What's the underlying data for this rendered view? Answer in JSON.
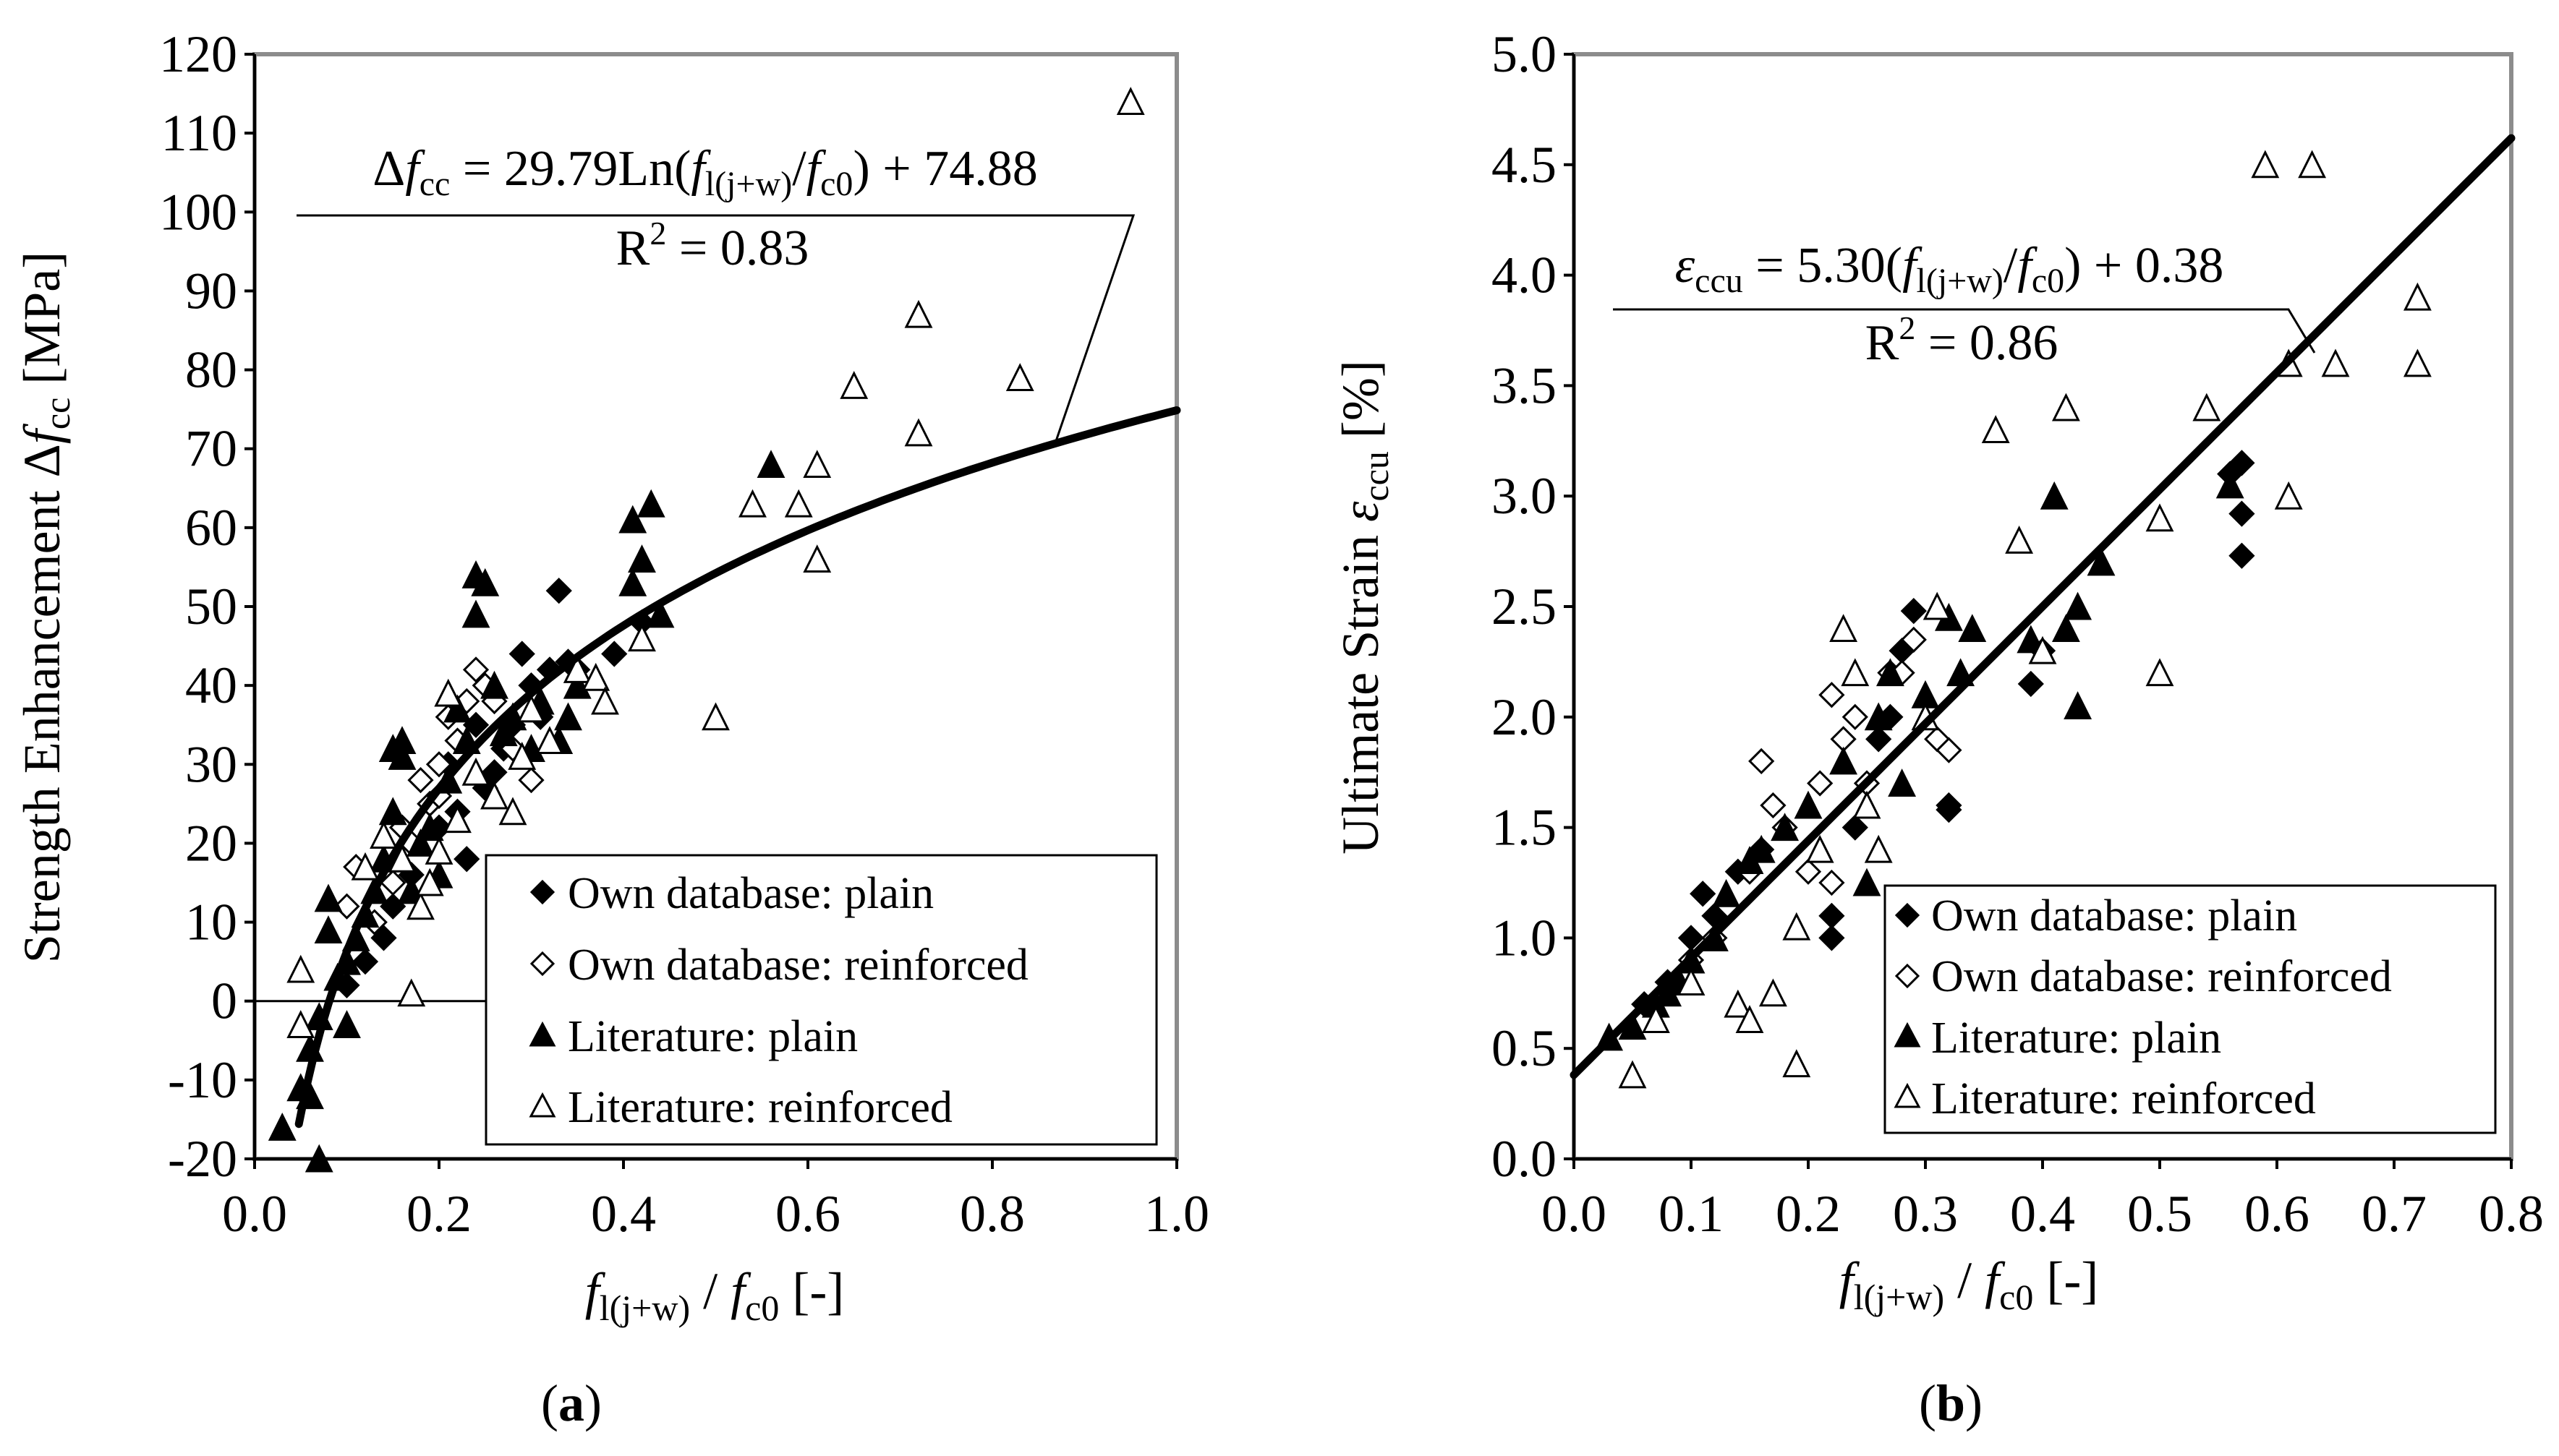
{
  "chart_data": [
    {
      "id": "a",
      "type": "scatter",
      "caption": {
        "open": "(",
        "letter": "a",
        "close": ")"
      },
      "xlim": [
        0,
        1.0
      ],
      "ylim": [
        -20,
        120
      ],
      "x_ticks": [
        "0.0",
        "0.2",
        "0.4",
        "0.6",
        "0.8",
        "1.0"
      ],
      "x_tick_values": [
        0,
        0.2,
        0.4,
        0.6,
        0.8,
        1.0
      ],
      "y_ticks": [
        "-20",
        "-10",
        "0",
        "10",
        "20",
        "30",
        "40",
        "50",
        "60",
        "70",
        "80",
        "90",
        "100",
        "110",
        "120"
      ],
      "y_tick_values": [
        -20,
        -10,
        0,
        10,
        20,
        30,
        40,
        50,
        60,
        70,
        80,
        90,
        100,
        110,
        120
      ],
      "ylabel": {
        "main": "Strength Enhancement Δ",
        "f": "f",
        "sub": "cc",
        "unit": " [MPa]"
      },
      "xlabel": {
        "f1": "f",
        "sub1": "l(j+w)",
        "slash": " / ",
        "f2": "f",
        "sub2": "c0",
        "unit": "  [-]"
      },
      "equation": {
        "lhs_delta": "Δ",
        "lhs_f": "f",
        "lhs_sub": "cc",
        "eq_mid": " = 29.79Ln(",
        "f1": "f",
        "sub1": "l(j+w)",
        "slash": "/",
        "f2": "f",
        "sub2": "c0",
        "rhs": ") + 74.88",
        "r2_base": "R",
        "r2_sup": "2",
        "r2_val": " = 0.83"
      },
      "fit": {
        "model": "log",
        "a": 29.79,
        "b": 74.88,
        "x_range": [
          0.04,
          1.0
        ]
      },
      "legend": [
        {
          "label": "Own database: plain",
          "marker": "diamond-filled"
        },
        {
          "label": "Own database: reinforced",
          "marker": "diamond-open"
        },
        {
          "label": "Literature: plain",
          "marker": "triangle-filled"
        },
        {
          "label": "Literature: reinforced",
          "marker": "triangle-open"
        }
      ],
      "series": [
        {
          "name": "Own database: plain",
          "marker": "diamond-filled",
          "points": [
            [
              0.1,
              2
            ],
            [
              0.12,
              5
            ],
            [
              0.14,
              8
            ],
            [
              0.15,
              12
            ],
            [
              0.17,
              16
            ],
            [
              0.2,
              22
            ],
            [
              0.22,
              24
            ],
            [
              0.23,
              18
            ],
            [
              0.25,
              27
            ],
            [
              0.26,
              29
            ],
            [
              0.28,
              35
            ],
            [
              0.29,
              44
            ],
            [
              0.3,
              40
            ],
            [
              0.32,
              42
            ],
            [
              0.33,
              52
            ],
            [
              0.34,
              43
            ],
            [
              0.35,
              42
            ],
            [
              0.39,
              44
            ],
            [
              0.42,
              48
            ],
            [
              0.27,
              32
            ],
            [
              0.31,
              36
            ],
            [
              0.21,
              30
            ],
            [
              0.24,
              35
            ]
          ]
        },
        {
          "name": "Own database: reinforced",
          "marker": "diamond-open",
          "points": [
            [
              0.1,
              12
            ],
            [
              0.11,
              17
            ],
            [
              0.13,
              10
            ],
            [
              0.15,
              15
            ],
            [
              0.17,
              20
            ],
            [
              0.19,
              25
            ],
            [
              0.2,
              30
            ],
            [
              0.21,
              36
            ],
            [
              0.22,
              33
            ],
            [
              0.23,
              38
            ],
            [
              0.24,
              42
            ],
            [
              0.25,
              40
            ],
            [
              0.26,
              38
            ],
            [
              0.28,
              32
            ],
            [
              0.3,
              28
            ],
            [
              0.18,
              28
            ],
            [
              0.2,
              26
            ],
            [
              0.16,
              22
            ]
          ]
        },
        {
          "name": "Literature: plain",
          "marker": "triangle-filled",
          "points": [
            [
              0.03,
              -16
            ],
            [
              0.05,
              -11
            ],
            [
              0.06,
              -6
            ],
            [
              0.07,
              -2
            ],
            [
              0.08,
              9
            ],
            [
              0.08,
              13
            ],
            [
              0.1,
              -3
            ],
            [
              0.1,
              5
            ],
            [
              0.11,
              8
            ],
            [
              0.12,
              11
            ],
            [
              0.13,
              14
            ],
            [
              0.14,
              18
            ],
            [
              0.15,
              24
            ],
            [
              0.15,
              32
            ],
            [
              0.16,
              33
            ],
            [
              0.16,
              31
            ],
            [
              0.17,
              14
            ],
            [
              0.18,
              20
            ],
            [
              0.19,
              22
            ],
            [
              0.2,
              16
            ],
            [
              0.21,
              28
            ],
            [
              0.22,
              37
            ],
            [
              0.23,
              33
            ],
            [
              0.24,
              49
            ],
            [
              0.24,
              54
            ],
            [
              0.25,
              53
            ],
            [
              0.26,
              40
            ],
            [
              0.27,
              34
            ],
            [
              0.28,
              36
            ],
            [
              0.3,
              32
            ],
            [
              0.31,
              38
            ],
            [
              0.33,
              33
            ],
            [
              0.34,
              36
            ],
            [
              0.35,
              40
            ],
            [
              0.41,
              53
            ],
            [
              0.41,
              61
            ],
            [
              0.42,
              56
            ],
            [
              0.43,
              63
            ],
            [
              0.44,
              49
            ],
            [
              0.56,
              68
            ],
            [
              0.07,
              -20
            ],
            [
              0.06,
              -12
            ],
            [
              0.09,
              3
            ]
          ]
        },
        {
          "name": "Literature: reinforced",
          "marker": "triangle-open",
          "points": [
            [
              0.05,
              -3
            ],
            [
              0.05,
              4
            ],
            [
              0.12,
              17
            ],
            [
              0.14,
              21
            ],
            [
              0.16,
              18
            ],
            [
              0.17,
              1
            ],
            [
              0.18,
              12
            ],
            [
              0.19,
              15
            ],
            [
              0.2,
              19
            ],
            [
              0.21,
              39
            ],
            [
              0.22,
              23
            ],
            [
              0.24,
              29
            ],
            [
              0.26,
              26
            ],
            [
              0.28,
              24
            ],
            [
              0.29,
              31
            ],
            [
              0.3,
              37
            ],
            [
              0.32,
              33
            ],
            [
              0.35,
              42
            ],
            [
              0.37,
              41
            ],
            [
              0.38,
              38
            ],
            [
              0.42,
              46
            ],
            [
              0.5,
              36
            ],
            [
              0.54,
              63
            ],
            [
              0.59,
              63
            ],
            [
              0.61,
              68
            ],
            [
              0.61,
              56
            ],
            [
              0.65,
              78
            ],
            [
              0.72,
              87
            ],
            [
              0.72,
              72
            ],
            [
              0.83,
              79
            ],
            [
              0.95,
              114
            ]
          ]
        }
      ]
    },
    {
      "id": "b",
      "type": "scatter",
      "caption": {
        "open": "(",
        "letter": "b",
        "close": ")"
      },
      "xlim": [
        0,
        0.8
      ],
      "ylim": [
        0,
        5.0
      ],
      "x_ticks": [
        "0.0",
        "0.1",
        "0.2",
        "0.3",
        "0.4",
        "0.5",
        "0.6",
        "0.7",
        "0.8"
      ],
      "x_tick_values": [
        0,
        0.1,
        0.2,
        0.3,
        0.4,
        0.5,
        0.6,
        0.7,
        0.8
      ],
      "y_ticks": [
        "0.0",
        "0.5",
        "1.0",
        "1.5",
        "2.0",
        "2.5",
        "3.0",
        "3.5",
        "4.0",
        "4.5",
        "5.0"
      ],
      "y_tick_values": [
        0,
        0.5,
        1.0,
        1.5,
        2.0,
        2.5,
        3.0,
        3.5,
        4.0,
        4.5,
        5.0
      ],
      "ylabel": {
        "main": "Ultimate Strain ",
        "f": "ε",
        "sub": "ccu",
        "unit": " [%]"
      },
      "xlabel": {
        "f1": "f",
        "sub1": "l(j+w)",
        "slash": " / ",
        "f2": "f",
        "sub2": "c0",
        "unit": " [-]"
      },
      "equation": {
        "lhs_delta": "",
        "lhs_f": "ε",
        "lhs_sub": "ccu",
        "eq_mid": " = 5.30(",
        "f1": "f",
        "sub1": "l(j+w)",
        "slash": "/",
        "f2": "f",
        "sub2": "c0",
        "rhs": ") + 0.38",
        "r2_base": "R",
        "r2_sup": "2",
        "r2_val": " = 0.86"
      },
      "fit": {
        "model": "linear",
        "a": 5.3,
        "b": 0.38,
        "x_range": [
          0,
          0.8
        ]
      },
      "legend": [
        {
          "label": "Own database: plain",
          "marker": "diamond-filled"
        },
        {
          "label": "Own database: reinforced",
          "marker": "diamond-open"
        },
        {
          "label": "Literature: plain",
          "marker": "triangle-filled"
        },
        {
          "label": "Literature: reinforced",
          "marker": "triangle-open"
        }
      ],
      "series": [
        {
          "name": "Own database: plain",
          "marker": "diamond-filled",
          "points": [
            [
              0.06,
              0.7
            ],
            [
              0.08,
              0.8
            ],
            [
              0.1,
              1.0
            ],
            [
              0.11,
              1.2
            ],
            [
              0.12,
              1.1
            ],
            [
              0.14,
              1.3
            ],
            [
              0.16,
              1.4
            ],
            [
              0.22,
              1.0
            ],
            [
              0.22,
              1.1
            ],
            [
              0.24,
              1.5
            ],
            [
              0.26,
              1.9
            ],
            [
              0.27,
              2.0
            ],
            [
              0.28,
              2.3
            ],
            [
              0.29,
              2.48
            ],
            [
              0.32,
              1.6
            ],
            [
              0.32,
              1.58
            ],
            [
              0.39,
              2.15
            ],
            [
              0.4,
              2.3
            ],
            [
              0.57,
              3.15
            ],
            [
              0.57,
              2.92
            ],
            [
              0.57,
              2.73
            ],
            [
              0.56,
              3.1
            ]
          ]
        },
        {
          "name": "Own database: reinforced",
          "marker": "diamond-open",
          "points": [
            [
              0.1,
              0.9
            ],
            [
              0.12,
              1.0
            ],
            [
              0.15,
              1.3
            ],
            [
              0.16,
              1.8
            ],
            [
              0.17,
              1.6
            ],
            [
              0.18,
              1.5
            ],
            [
              0.2,
              1.3
            ],
            [
              0.21,
              1.7
            ],
            [
              0.22,
              2.1
            ],
            [
              0.23,
              1.9
            ],
            [
              0.24,
              2.0
            ],
            [
              0.25,
              1.7
            ],
            [
              0.27,
              2.2
            ],
            [
              0.28,
              2.2
            ],
            [
              0.29,
              2.35
            ],
            [
              0.31,
              1.9
            ],
            [
              0.32,
              1.85
            ],
            [
              0.22,
              1.25
            ]
          ]
        },
        {
          "name": "Literature: plain",
          "marker": "triangle-filled",
          "points": [
            [
              0.03,
              0.55
            ],
            [
              0.05,
              0.6
            ],
            [
              0.07,
              0.7
            ],
            [
              0.08,
              0.75
            ],
            [
              0.09,
              0.8
            ],
            [
              0.1,
              0.9
            ],
            [
              0.12,
              1.0
            ],
            [
              0.13,
              1.2
            ],
            [
              0.15,
              1.35
            ],
            [
              0.16,
              1.4
            ],
            [
              0.18,
              1.5
            ],
            [
              0.2,
              1.6
            ],
            [
              0.23,
              1.8
            ],
            [
              0.25,
              1.25
            ],
            [
              0.26,
              2.0
            ],
            [
              0.27,
              2.2
            ],
            [
              0.28,
              1.7
            ],
            [
              0.3,
              2.1
            ],
            [
              0.32,
              2.45
            ],
            [
              0.33,
              2.2
            ],
            [
              0.34,
              2.4
            ],
            [
              0.39,
              2.35
            ],
            [
              0.41,
              3.0
            ],
            [
              0.42,
              2.4
            ],
            [
              0.43,
              2.05
            ],
            [
              0.43,
              2.5
            ],
            [
              0.45,
              2.7
            ],
            [
              0.56,
              3.05
            ]
          ]
        },
        {
          "name": "Literature: reinforced",
          "marker": "triangle-open",
          "points": [
            [
              0.05,
              0.38
            ],
            [
              0.07,
              0.63
            ],
            [
              0.1,
              0.8
            ],
            [
              0.14,
              0.7
            ],
            [
              0.15,
              0.63
            ],
            [
              0.17,
              0.75
            ],
            [
              0.19,
              1.05
            ],
            [
              0.19,
              0.43
            ],
            [
              0.21,
              1.4
            ],
            [
              0.23,
              2.4
            ],
            [
              0.24,
              2.2
            ],
            [
              0.25,
              1.6
            ],
            [
              0.26,
              1.4
            ],
            [
              0.3,
              2.0
            ],
            [
              0.31,
              2.5
            ],
            [
              0.36,
              3.3
            ],
            [
              0.38,
              2.8
            ],
            [
              0.4,
              2.3
            ],
            [
              0.42,
              3.4
            ],
            [
              0.5,
              2.9
            ],
            [
              0.5,
              2.2
            ],
            [
              0.54,
              3.4
            ],
            [
              0.59,
              4.5
            ],
            [
              0.61,
              3.6
            ],
            [
              0.61,
              3.0
            ],
            [
              0.63,
              4.5
            ],
            [
              0.65,
              3.6
            ],
            [
              0.72,
              3.9
            ],
            [
              0.72,
              3.6
            ]
          ]
        }
      ]
    }
  ]
}
